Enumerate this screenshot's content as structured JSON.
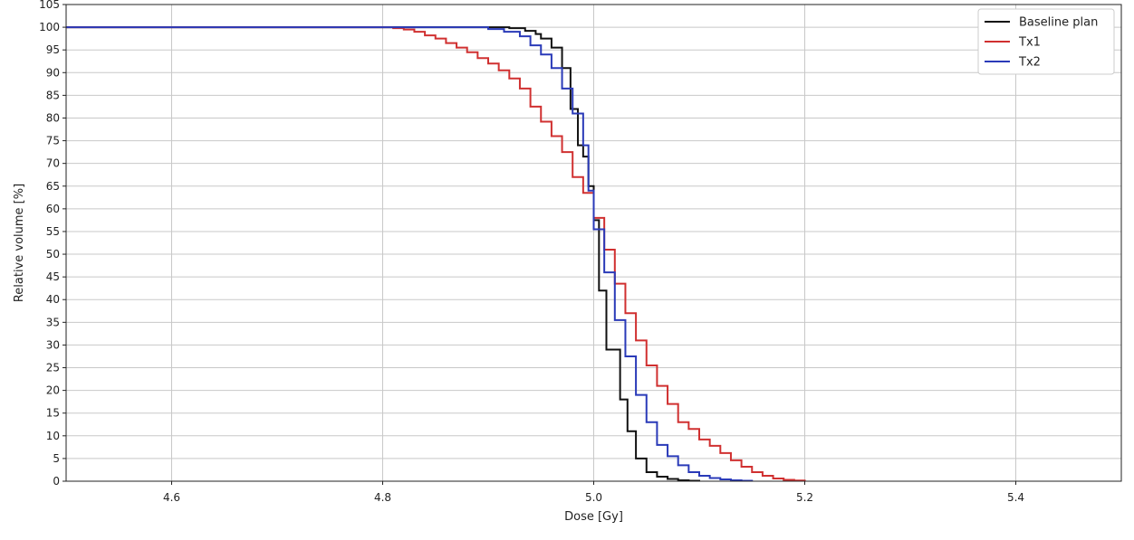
{
  "chart_data": {
    "type": "line",
    "title": "",
    "xlabel": "Dose [Gy]",
    "ylabel": "Relative volume [%]",
    "xlim": [
      4.5,
      5.5
    ],
    "ylim": [
      0,
      105
    ],
    "x_ticks": [
      4.6,
      4.8,
      5.0,
      5.2,
      5.4
    ],
    "x_tick_labels": [
      "4.6",
      "4.8",
      "5.0",
      "5.2",
      "5.4"
    ],
    "y_ticks": [
      0,
      5,
      10,
      15,
      20,
      25,
      30,
      35,
      40,
      45,
      50,
      55,
      60,
      65,
      70,
      75,
      80,
      85,
      90,
      95,
      100,
      105
    ],
    "y_tick_labels": [
      "0",
      "5",
      "10",
      "15",
      "20",
      "25",
      "30",
      "35",
      "40",
      "45",
      "50",
      "55",
      "60",
      "65",
      "70",
      "75",
      "80",
      "85",
      "90",
      "95",
      "100",
      "105"
    ],
    "grid": true,
    "legend_position": "top-right",
    "step": true,
    "series": [
      {
        "name": "Baseline plan",
        "color": "#111111",
        "x": [
          4.5,
          4.9,
          4.92,
          4.935,
          4.945,
          4.95,
          4.96,
          4.97,
          4.978,
          4.985,
          4.99,
          4.995,
          5.0,
          5.005,
          5.012,
          5.018,
          5.025,
          5.032,
          5.04,
          5.05,
          5.06,
          5.07,
          5.08,
          5.09,
          5.1
        ],
        "y": [
          100,
          100,
          99.8,
          99.2,
          98.5,
          97.5,
          95.5,
          91,
          82,
          74,
          71.5,
          65,
          57.5,
          42,
          29,
          29,
          18,
          11,
          5,
          2,
          1,
          0.5,
          0.2,
          0.1,
          0
        ]
      },
      {
        "name": "Tx1",
        "color": "#d03030",
        "x": [
          4.5,
          4.8,
          4.81,
          4.82,
          4.83,
          4.84,
          4.85,
          4.86,
          4.87,
          4.88,
          4.89,
          4.9,
          4.91,
          4.92,
          4.93,
          4.94,
          4.95,
          4.96,
          4.97,
          4.98,
          4.99,
          5.0,
          5.01,
          5.02,
          5.03,
          5.04,
          5.05,
          5.06,
          5.07,
          5.08,
          5.09,
          5.1,
          5.11,
          5.12,
          5.13,
          5.14,
          5.15,
          5.16,
          5.17,
          5.18,
          5.19,
          5.2
        ],
        "y": [
          100,
          100,
          99.8,
          99.5,
          99,
          98.2,
          97.5,
          96.5,
          95.5,
          94.5,
          93.2,
          92,
          90.5,
          88.7,
          86.5,
          82.5,
          79.2,
          76,
          72.5,
          67,
          63.5,
          58,
          51,
          43.5,
          37,
          31,
          25.5,
          21,
          17,
          13,
          11.5,
          9.2,
          7.8,
          6.2,
          4.6,
          3.2,
          2,
          1.2,
          0.6,
          0.3,
          0.15,
          0
        ]
      },
      {
        "name": "Tx2",
        "color": "#2a3ab8",
        "x": [
          4.5,
          4.88,
          4.9,
          4.915,
          4.93,
          4.94,
          4.95,
          4.96,
          4.97,
          4.98,
          4.99,
          4.995,
          5.0,
          5.01,
          5.02,
          5.03,
          5.04,
          5.05,
          5.06,
          5.07,
          5.08,
          5.09,
          5.1,
          5.11,
          5.12,
          5.13,
          5.14,
          5.15
        ],
        "y": [
          100,
          100,
          99.6,
          99,
          98,
          96,
          94,
          91,
          86.5,
          81,
          74,
          64,
          55.5,
          46,
          35.5,
          27.5,
          19,
          13,
          8,
          5.5,
          3.5,
          2,
          1.2,
          0.7,
          0.4,
          0.2,
          0.1,
          0
        ]
      }
    ]
  }
}
